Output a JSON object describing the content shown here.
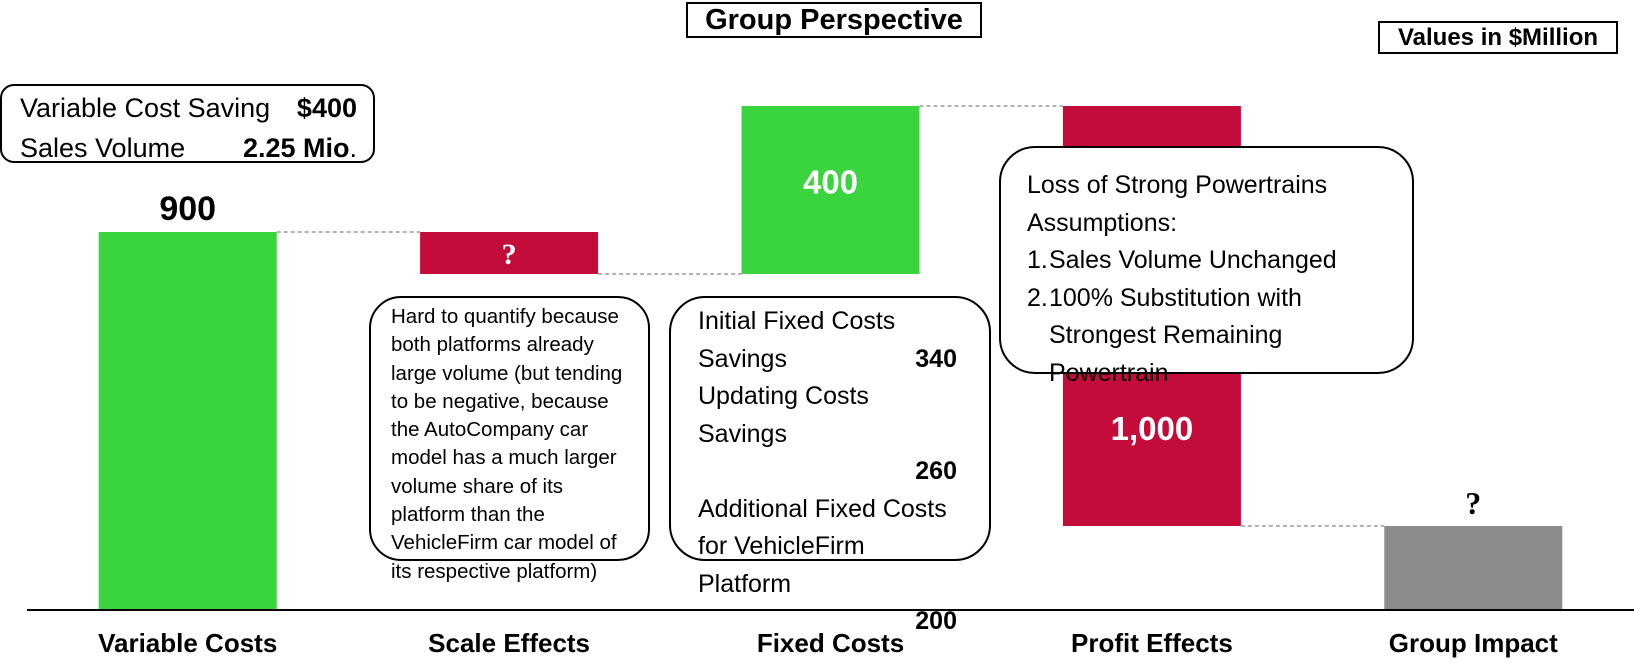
{
  "header": {
    "title": "Group Perspective",
    "units": "Values in $Million"
  },
  "assumptions": {
    "rows": [
      {
        "label": "Variable Cost Saving",
        "value": "$400",
        "suffix": ""
      },
      {
        "label": "Sales Volume",
        "value": "2.25 Mio",
        "suffix": "."
      }
    ]
  },
  "notes": {
    "scale": "Hard to quantify because both platforms already large volume (but tending to be negative, because the AutoCompany car model has a much larger volume share of its platform than the VehicleFirm car model of its respective platform)",
    "fixed": {
      "r1": "Initial Fixed Costs",
      "r2_label": "Savings",
      "r2_value": "340",
      "r3": "Updating Costs Savings",
      "r4_value": "260",
      "r5": "Additional Fixed Costs",
      "r6": "for VehicleFirm Platform",
      "r7_value": "200"
    },
    "profit": {
      "line1": "Loss of Strong Powertrains",
      "line2": "Assumptions:",
      "items": [
        {
          "n": "1.",
          "text": "Sales Volume Unchanged"
        },
        {
          "n": "2.",
          "text": "100% Substitution with"
        }
      ],
      "line5": "Strongest Remaining Powertrain"
    }
  },
  "chart_data": {
    "type": "bar",
    "subtype": "waterfall",
    "categories": [
      "Variable Costs",
      "Scale Effects",
      "Fixed Costs",
      "Profit Effects",
      "Group Impact"
    ],
    "bars": [
      {
        "category": "Variable Costs",
        "start": 0,
        "end": 900,
        "label": "900",
        "color": "#3ad43f",
        "label_position": "above"
      },
      {
        "category": "Scale Effects",
        "start": 900,
        "end": 800,
        "label": "?",
        "color": "#c40c3a",
        "label_position": "inside",
        "note": "value unknown; drawn as a small decrease"
      },
      {
        "category": "Fixed Costs",
        "start": 800,
        "end": 1200,
        "label": "400",
        "color": "#3ad43f",
        "label_position": "inside"
      },
      {
        "category": "Profit Effects",
        "start": 1200,
        "end": 200,
        "label": "1,000",
        "color": "#c40c3a",
        "label_position": "inside"
      },
      {
        "category": "Group Impact",
        "start": 0,
        "end": 200,
        "label": "?",
        "color": "#8c8c8c",
        "label_position": "above"
      }
    ],
    "ylim": [
      0,
      1200
    ],
    "grid": false,
    "legend": "none",
    "connectors": "dashed",
    "title": "Group Perspective",
    "units": "Values in $Million"
  }
}
